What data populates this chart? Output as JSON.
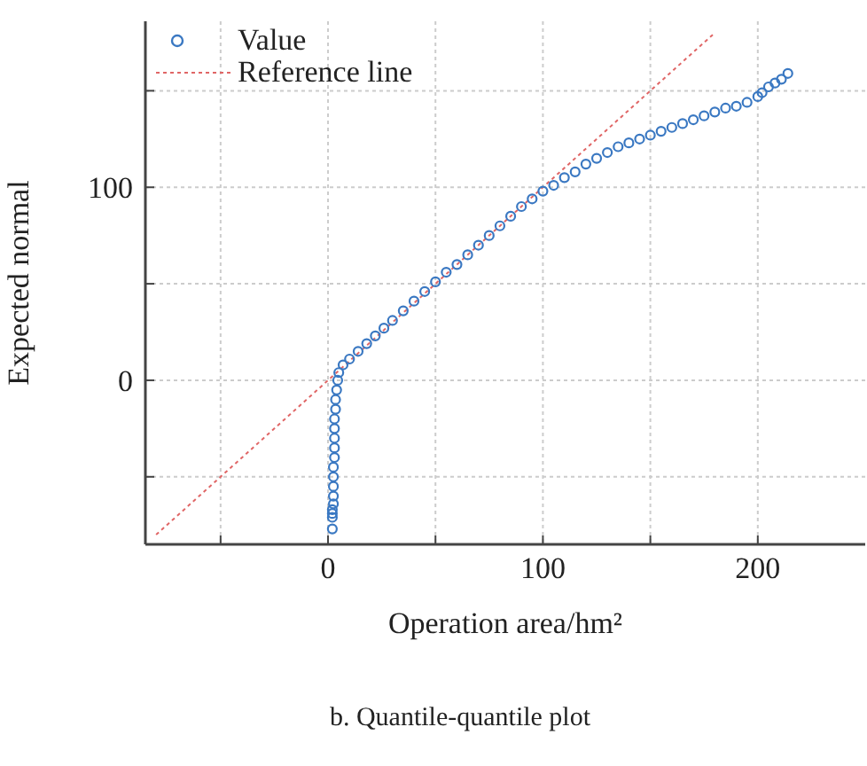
{
  "chart_data": {
    "type": "scatter",
    "title": "b. Quantile-quantile plot",
    "xlabel": "Operation area/hm²",
    "ylabel": "Expected normal",
    "xlim": [
      -85,
      250
    ],
    "ylim": [
      -85,
      186
    ],
    "xticks": [
      {
        "value": -50,
        "label": null
      },
      0,
      {
        "value": 50,
        "label": null
      },
      100,
      {
        "value": 150,
        "label": null
      },
      200
    ],
    "yticks": [
      {
        "value": -50,
        "label": null
      },
      0,
      {
        "value": 50,
        "label": null
      },
      100,
      {
        "value": 150,
        "label": null
      }
    ],
    "grid": true,
    "legend": "top left",
    "series": [
      {
        "name": "Value",
        "marker": "circle",
        "color": "#3a78c2",
        "x": [
          2,
          2,
          2,
          2,
          2.5,
          2.5,
          2.5,
          2.5,
          2.5,
          3,
          3,
          3,
          3,
          3,
          3.5,
          3.5,
          4,
          4.5,
          5,
          7,
          10,
          14,
          18,
          22,
          26,
          30,
          35,
          40,
          45,
          50,
          55,
          60,
          65,
          70,
          75,
          80,
          85,
          90,
          95,
          100,
          105,
          110,
          115,
          120,
          125,
          130,
          135,
          140,
          145,
          150,
          155,
          160,
          165,
          170,
          175,
          180,
          185,
          190,
          195,
          200,
          202,
          205,
          208,
          211,
          214
        ],
        "values": [
          -77,
          -71,
          -69,
          -67,
          -64,
          -60,
          -55,
          -50,
          -45,
          -40,
          -35,
          -30,
          -25,
          -20,
          -15,
          -10,
          -5,
          0,
          4,
          8,
          11,
          15,
          19,
          23,
          27,
          31,
          36,
          41,
          46,
          51,
          56,
          60,
          65,
          70,
          75,
          80,
          85,
          90,
          94,
          98,
          101,
          105,
          108,
          112,
          115,
          118,
          121,
          123,
          125,
          127,
          129,
          131,
          133,
          135,
          137,
          139,
          141,
          142,
          144,
          147,
          149,
          152,
          154,
          156,
          159
        ]
      },
      {
        "name": "Reference line",
        "type": "line",
        "line_style": "dotted",
        "marker": "none",
        "color": "#e06666",
        "x": [
          -80,
          180
        ],
        "values": [
          -80,
          180
        ]
      }
    ]
  }
}
